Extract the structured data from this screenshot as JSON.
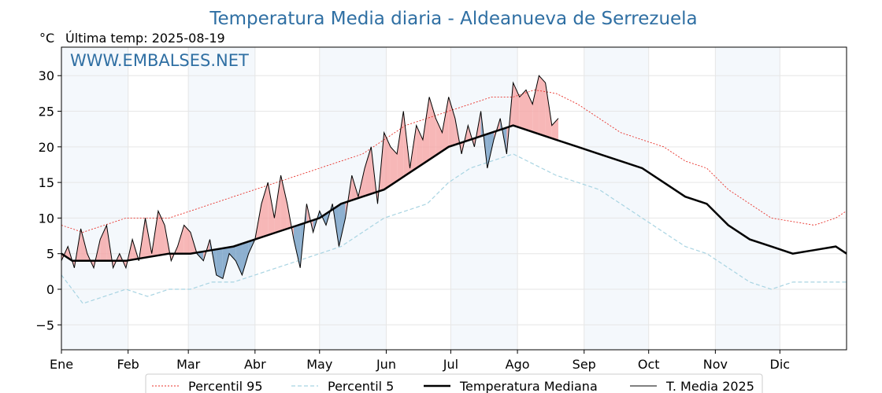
{
  "chart_data": {
    "type": "line",
    "title": "Temperatura Media diaria - Aldeanueva de Serrezuela",
    "unit_label": "°C",
    "subtitle": "Última temp: 2025-08-19",
    "watermark": "WWW.EMBALSES.NET",
    "ylim": [
      -8.5,
      34
    ],
    "yticks": [
      -5,
      0,
      5,
      10,
      15,
      20,
      25,
      30
    ],
    "xlim": [
      0,
      365
    ],
    "months": [
      {
        "label": "Ene",
        "day": 0
      },
      {
        "label": "Feb",
        "day": 31
      },
      {
        "label": "Mar",
        "day": 59
      },
      {
        "label": "Abr",
        "day": 90
      },
      {
        "label": "May",
        "day": 120
      },
      {
        "label": "Jun",
        "day": 151
      },
      {
        "label": "Jul",
        "day": 181
      },
      {
        "label": "Ago",
        "day": 212
      },
      {
        "label": "Sep",
        "day": 243
      },
      {
        "label": "Oct",
        "day": 273
      },
      {
        "label": "Nov",
        "day": 304
      },
      {
        "label": "Dic",
        "day": 334
      }
    ],
    "grid": true,
    "legend_position": "bottom",
    "series": [
      {
        "name": "Percentil 95",
        "style": "dotted",
        "color": "#e8312a",
        "x": [
          0,
          10,
          20,
          30,
          40,
          50,
          60,
          70,
          80,
          90,
          100,
          110,
          120,
          130,
          140,
          150,
          160,
          170,
          180,
          190,
          200,
          210,
          220,
          230,
          240,
          250,
          260,
          270,
          280,
          290,
          300,
          310,
          320,
          330,
          340,
          350,
          360,
          365
        ],
        "y": [
          9,
          8,
          9,
          10,
          10,
          10,
          11,
          12,
          13,
          14,
          15,
          16,
          17,
          18,
          19,
          21,
          23,
          24,
          25,
          26,
          27,
          27,
          28,
          27.5,
          26,
          24,
          22,
          21,
          20,
          18,
          17,
          14,
          12,
          10,
          9.5,
          9,
          10,
          11
        ]
      },
      {
        "name": "Percentil 5",
        "style": "dashed",
        "color": "#a8d4e2",
        "x": [
          0,
          5,
          10,
          20,
          30,
          40,
          50,
          60,
          70,
          80,
          90,
          100,
          110,
          120,
          130,
          140,
          150,
          160,
          170,
          180,
          190,
          200,
          210,
          220,
          230,
          240,
          250,
          260,
          270,
          280,
          290,
          300,
          310,
          320,
          330,
          340,
          350,
          360,
          365
        ],
        "y": [
          2,
          0,
          -2,
          -1,
          0,
          -1,
          0,
          0,
          1,
          1,
          2,
          3,
          4,
          5,
          6,
          8,
          10,
          11,
          12,
          15,
          17,
          18,
          19,
          17.5,
          16,
          15,
          14,
          12,
          10,
          8,
          6,
          5,
          3,
          1,
          0,
          1,
          1,
          1,
          1
        ]
      },
      {
        "name": "Temperatura Mediana",
        "style": "thick",
        "color": "#000000",
        "x": [
          0,
          5,
          10,
          20,
          30,
          40,
          50,
          60,
          70,
          80,
          90,
          100,
          110,
          120,
          130,
          140,
          150,
          160,
          170,
          180,
          190,
          200,
          210,
          220,
          230,
          240,
          250,
          260,
          270,
          280,
          290,
          300,
          310,
          320,
          330,
          340,
          350,
          360,
          365
        ],
        "y": [
          5,
          4,
          4,
          4,
          4,
          4.5,
          5,
          5,
          5.5,
          6,
          7,
          8,
          9,
          10,
          12,
          13,
          14,
          16,
          18,
          20,
          21,
          22,
          23,
          22,
          21,
          20,
          19,
          18,
          17,
          15,
          13,
          12,
          9,
          7,
          6,
          5,
          5.5,
          6,
          5
        ]
      },
      {
        "name": "T. Media 2025",
        "style": "thin",
        "color": "#000000",
        "x": [
          0,
          3,
          6,
          9,
          12,
          15,
          18,
          21,
          24,
          27,
          30,
          33,
          36,
          39,
          42,
          45,
          48,
          51,
          54,
          57,
          60,
          63,
          66,
          69,
          72,
          75,
          78,
          81,
          84,
          87,
          90,
          93,
          96,
          99,
          102,
          105,
          108,
          111,
          114,
          117,
          120,
          123,
          126,
          129,
          132,
          135,
          138,
          141,
          144,
          147,
          150,
          153,
          156,
          159,
          162,
          165,
          168,
          171,
          174,
          177,
          180,
          183,
          186,
          189,
          192,
          195,
          198,
          201,
          204,
          207,
          210,
          213,
          216,
          219,
          222,
          225,
          228,
          231
        ],
        "y": [
          4,
          6,
          3,
          8.5,
          5,
          3,
          7,
          9,
          3,
          5,
          3,
          7,
          4,
          10,
          5,
          11,
          9,
          4,
          6,
          9,
          8,
          5,
          4,
          7,
          2,
          1.5,
          5,
          4,
          2,
          5,
          7,
          12,
          15,
          10,
          16,
          12,
          7,
          3,
          12,
          8,
          11,
          9,
          12,
          6,
          10,
          16,
          13,
          17,
          20,
          12,
          22,
          20,
          19,
          25,
          17,
          23,
          21,
          27,
          24,
          22,
          27,
          24,
          19,
          23,
          20,
          25,
          17,
          21,
          24,
          19,
          29,
          27,
          28,
          26,
          30,
          29,
          23,
          24
        ]
      }
    ]
  }
}
